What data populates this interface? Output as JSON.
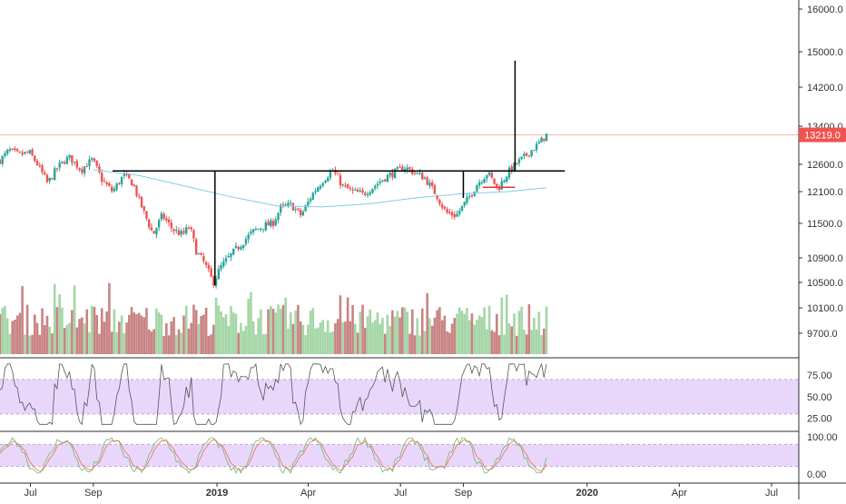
{
  "chart_data": {
    "type": "candlestick",
    "y_ticks": [
      "16000.0",
      "15000.0",
      "14200.0",
      "13400.0",
      "12600.0",
      "12100.0",
      "11500.0",
      "10900.0",
      "10500.0",
      "10100.0",
      "9700.0"
    ],
    "x_ticks": [
      "Jul",
      "Sep",
      "2019",
      "Apr",
      "Jul",
      "Sep",
      "2020",
      "Apr",
      "Jul"
    ],
    "bold_x_ticks": [
      "2019",
      "2020"
    ],
    "last_price": "13219.0",
    "last_price_color": "#ef5350",
    "up_color": "#26a69a",
    "down_color": "#ef5350",
    "volume_up_color": "#a5d6a7",
    "volume_down_color": "#c98383",
    "ma_color": "#7ecfe6",
    "price_path": [
      [
        "2018-06-01",
        12680
      ],
      [
        "2018-06-10",
        12900
      ],
      [
        "2018-06-20",
        12800
      ],
      [
        "2018-06-30",
        12850
      ],
      [
        "2018-07-08",
        12600
      ],
      [
        "2018-07-18",
        12250
      ],
      [
        "2018-07-28",
        12550
      ],
      [
        "2018-08-08",
        12750
      ],
      [
        "2018-08-20",
        12500
      ],
      [
        "2018-08-31",
        12700
      ],
      [
        "2018-09-10",
        12300
      ],
      [
        "2018-09-20",
        12100
      ],
      [
        "2018-10-01",
        12400
      ],
      [
        "2018-10-10",
        12250
      ],
      [
        "2018-10-20",
        11750
      ],
      [
        "2018-10-30",
        11300
      ],
      [
        "2018-11-08",
        11650
      ],
      [
        "2018-11-18",
        11400
      ],
      [
        "2018-11-28",
        11300
      ],
      [
        "2018-12-05",
        11450
      ],
      [
        "2018-12-12",
        11000
      ],
      [
        "2018-12-20",
        10800
      ],
      [
        "2018-12-28",
        10500
      ],
      [
        "2019-01-05",
        10750
      ],
      [
        "2019-01-15",
        10950
      ],
      [
        "2019-01-25",
        11150
      ],
      [
        "2019-02-05",
        11350
      ],
      [
        "2019-02-15",
        11450
      ],
      [
        "2019-02-25",
        11500
      ],
      [
        "2019-03-05",
        11800
      ],
      [
        "2019-03-15",
        11850
      ],
      [
        "2019-03-25",
        11650
      ],
      [
        "2019-04-05",
        12050
      ],
      [
        "2019-04-15",
        12300
      ],
      [
        "2019-04-25",
        12500
      ],
      [
        "2019-05-05",
        12200
      ],
      [
        "2019-05-15",
        12100
      ],
      [
        "2019-05-25",
        12050
      ],
      [
        "2019-06-05",
        12200
      ],
      [
        "2019-06-15",
        12350
      ],
      [
        "2019-06-25",
        12450
      ],
      [
        "2019-07-05",
        12550
      ],
      [
        "2019-07-15",
        12450
      ],
      [
        "2019-07-25",
        12350
      ],
      [
        "2019-08-05",
        12050
      ],
      [
        "2019-08-15",
        11700
      ],
      [
        "2019-08-25",
        11650
      ],
      [
        "2019-09-05",
        11950
      ],
      [
        "2019-09-15",
        12250
      ],
      [
        "2019-09-25",
        12450
      ],
      [
        "2019-10-05",
        12150
      ],
      [
        "2019-10-15",
        12450
      ],
      [
        "2019-10-25",
        12650
      ],
      [
        "2019-11-05",
        12850
      ],
      [
        "2019-11-15",
        13050
      ],
      [
        "2019-11-22",
        13219
      ]
    ],
    "moving_average": [
      [
        "2018-09-01",
        12500
      ],
      [
        "2018-10-15",
        12400
      ],
      [
        "2018-12-01",
        12200
      ],
      [
        "2019-01-15",
        12000
      ],
      [
        "2019-03-01",
        11830
      ],
      [
        "2019-04-15",
        11810
      ],
      [
        "2019-06-01",
        11870
      ],
      [
        "2019-07-15",
        11980
      ],
      [
        "2019-09-01",
        12060
      ],
      [
        "2019-10-15",
        12100
      ],
      [
        "2019-11-22",
        12170
      ]
    ],
    "annotations": {
      "neckline": {
        "x0": "2018-09-20",
        "x1": "2019-12-10",
        "y": 12480
      },
      "left_measure": {
        "x": "2018-12-30",
        "y0": 10450,
        "y1": 12480
      },
      "right_measure": {
        "x": "2019-09-01",
        "y0": 11980,
        "y1": 12480
      },
      "target_line": {
        "x": "2019-10-22",
        "y0": 12480,
        "y1": 14800
      },
      "red_segment": {
        "x0": "2019-09-20",
        "x1": "2019-10-22",
        "y": 12180
      }
    },
    "rsi_ticks": [
      "75.00",
      "50.00",
      "25.00"
    ],
    "rsi_band": [
      30,
      70
    ],
    "stoch_ticks": [
      "100.00",
      "0.00"
    ],
    "stoch_band": [
      20,
      80
    ],
    "band_color": "#e9d7fb"
  }
}
